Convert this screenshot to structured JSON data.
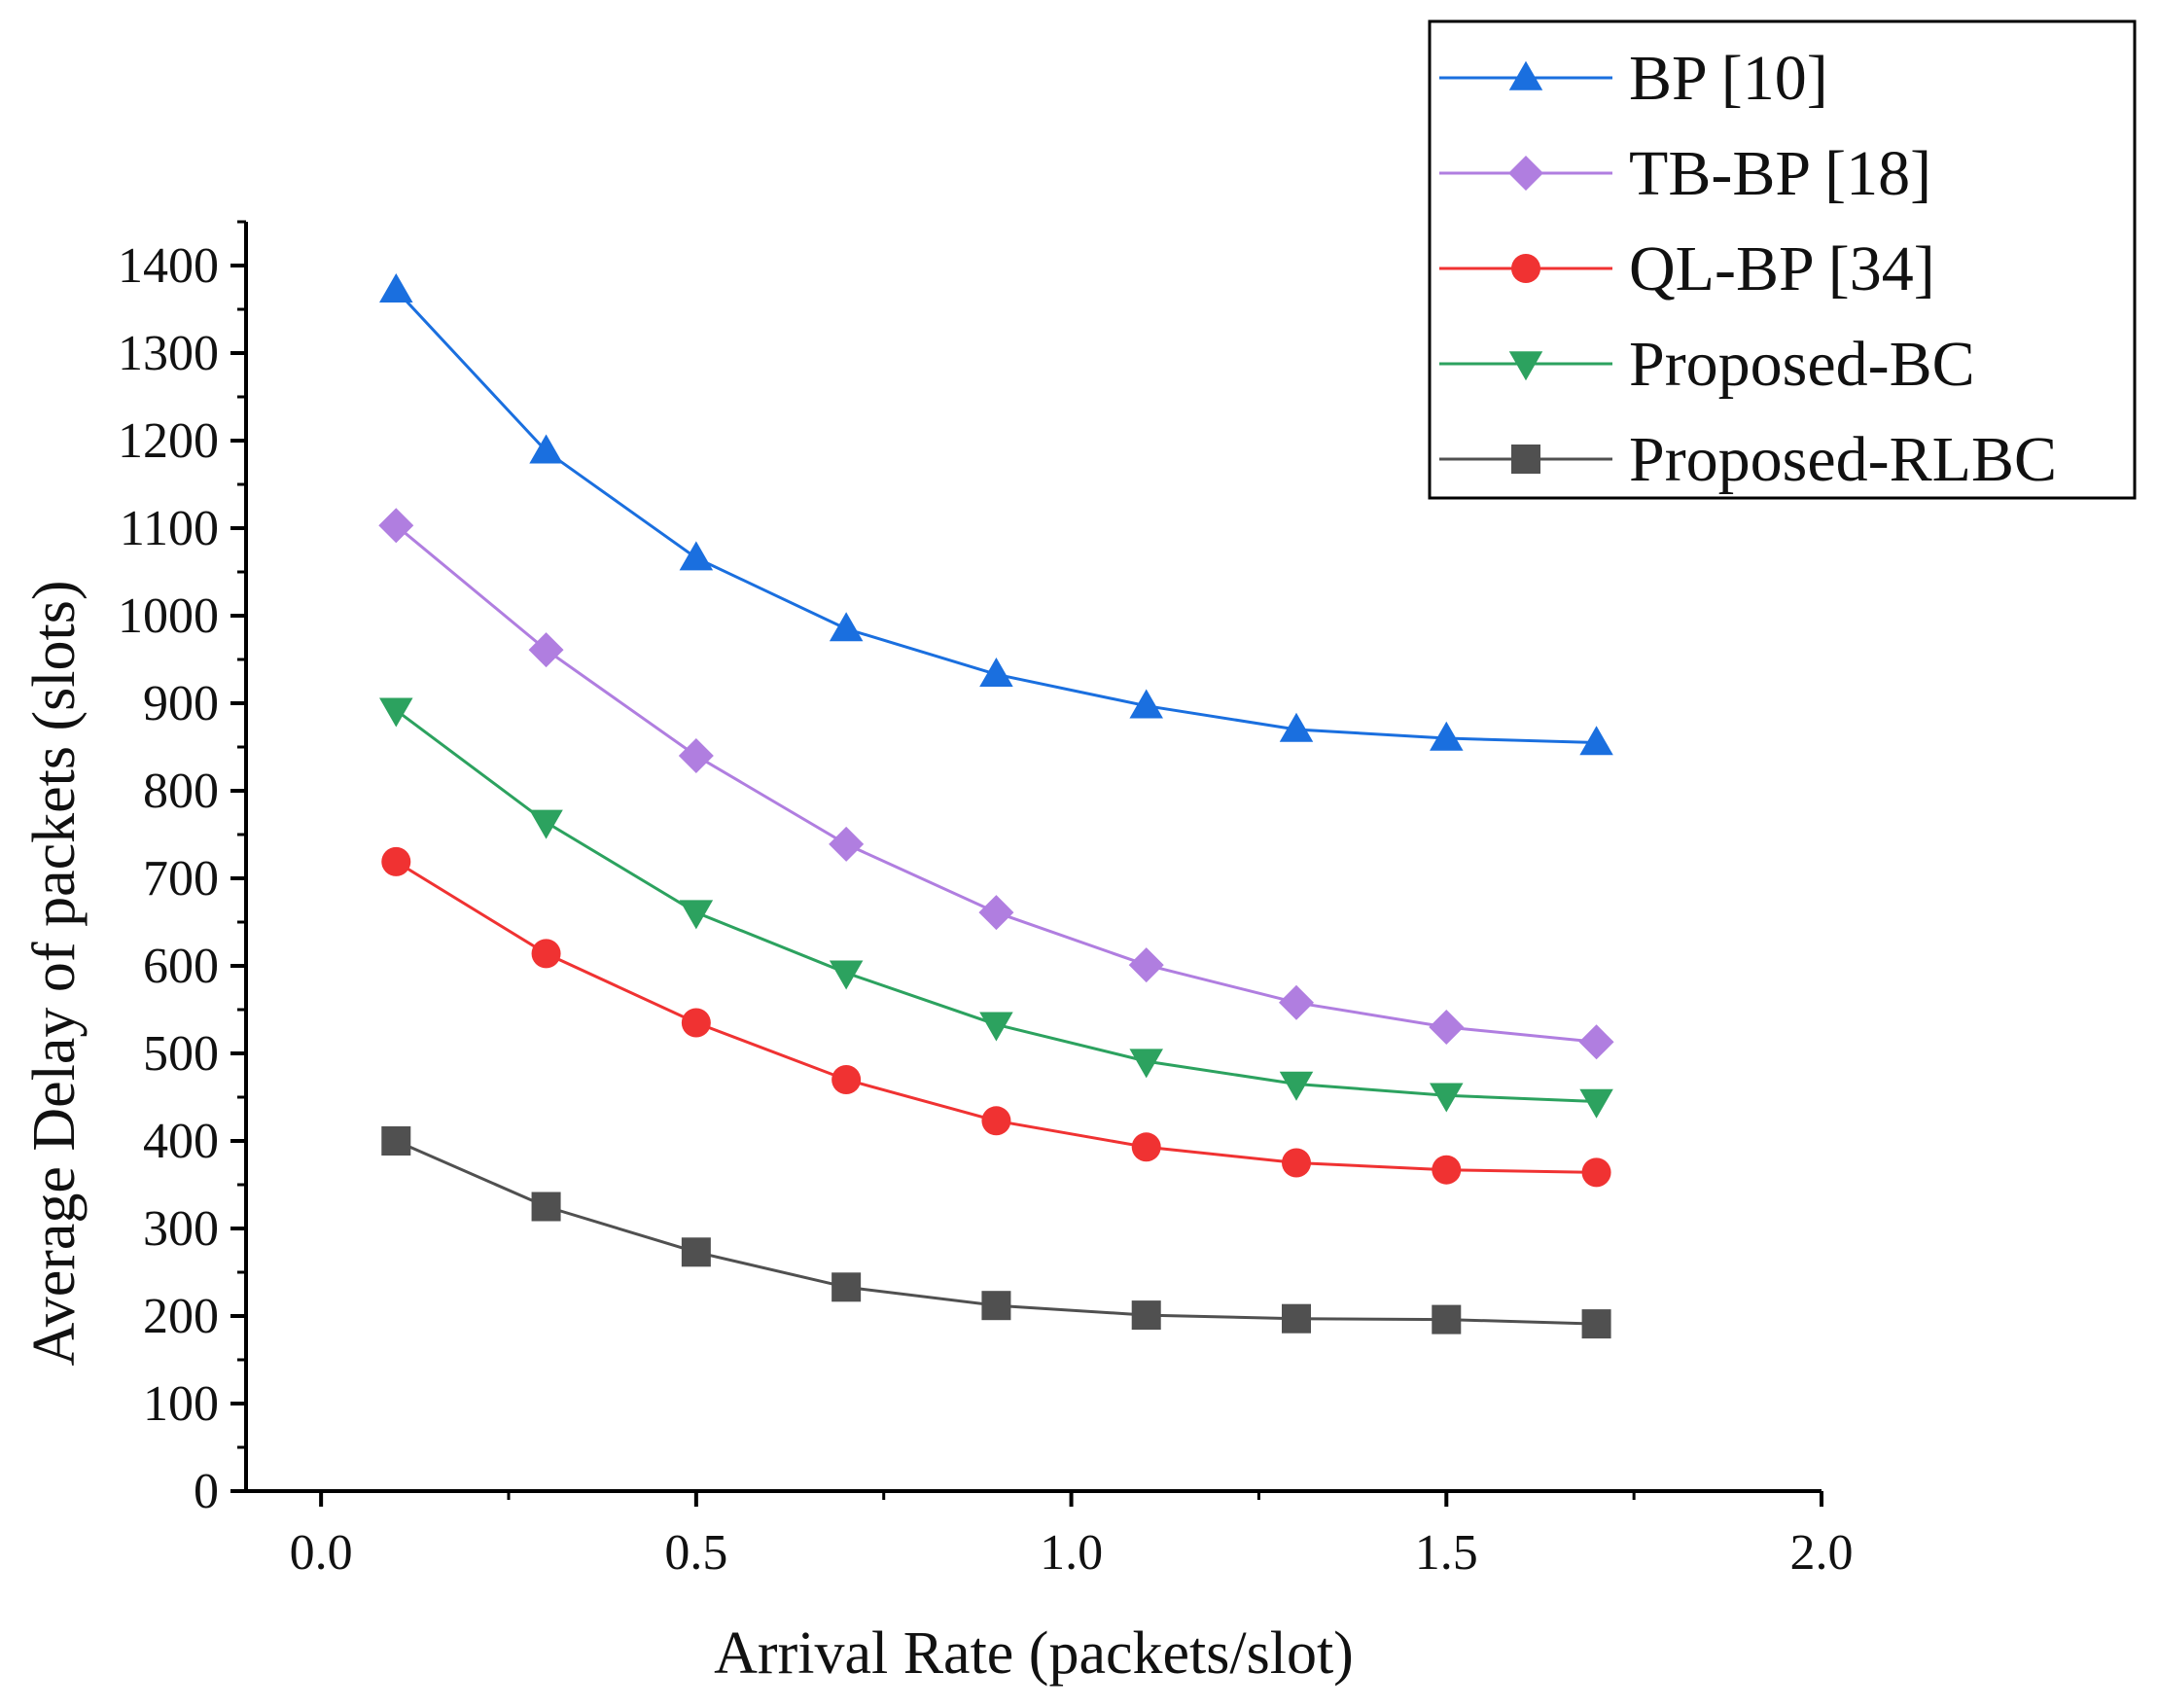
{
  "chart_data": {
    "type": "line",
    "title": "",
    "xlabel": "Arrival Rate (packets/slot)",
    "ylabel": "Average Delay of packets (slots)",
    "xlim": [
      -0.1,
      2.0
    ],
    "ylim": [
      0,
      1450
    ],
    "x_ticks": [
      0.0,
      0.5,
      1.0,
      1.5,
      2.0
    ],
    "x_tick_labels": [
      "0.0",
      "0.5",
      "1.0",
      "1.5",
      "2.0"
    ],
    "y_ticks": [
      0,
      100,
      200,
      300,
      400,
      500,
      600,
      700,
      800,
      900,
      1000,
      1100,
      1200,
      1300,
      1400
    ],
    "y_tick_labels": [
      "0",
      "100",
      "200",
      "300",
      "400",
      "500",
      "600",
      "700",
      "800",
      "900",
      "1000",
      "1100",
      "1200",
      "1300",
      "1400"
    ],
    "grid": false,
    "legend_position": "top-right",
    "x": [
      0.1,
      0.3,
      0.5,
      0.7,
      0.9,
      1.1,
      1.3,
      1.5,
      1.7
    ],
    "series": [
      {
        "name": "BP [10]",
        "color": "#1a6fdf",
        "marker": "triangle-up",
        "values": [
          1372,
          1188,
          1066,
          985,
          933,
          897,
          870,
          860,
          855
        ]
      },
      {
        "name": "TB-BP [18]",
        "color": "#b07ee0",
        "marker": "diamond",
        "values": [
          1103,
          961,
          840,
          739,
          661,
          601,
          558,
          530,
          513
        ]
      },
      {
        "name": "QL-BP [34]",
        "color": "#f03232",
        "marker": "circle",
        "values": [
          719,
          614,
          535,
          470,
          423,
          393,
          375,
          367,
          364
        ]
      },
      {
        "name": "Proposed-BC",
        "color": "#2ca25f",
        "marker": "triangle-down",
        "values": [
          892,
          764,
          661,
          592,
          533,
          491,
          465,
          452,
          445
        ]
      },
      {
        "name": "Proposed-RLBC",
        "color": "#505050",
        "marker": "square",
        "values": [
          400,
          325,
          273,
          233,
          212,
          201,
          197,
          196,
          191
        ]
      }
    ]
  }
}
